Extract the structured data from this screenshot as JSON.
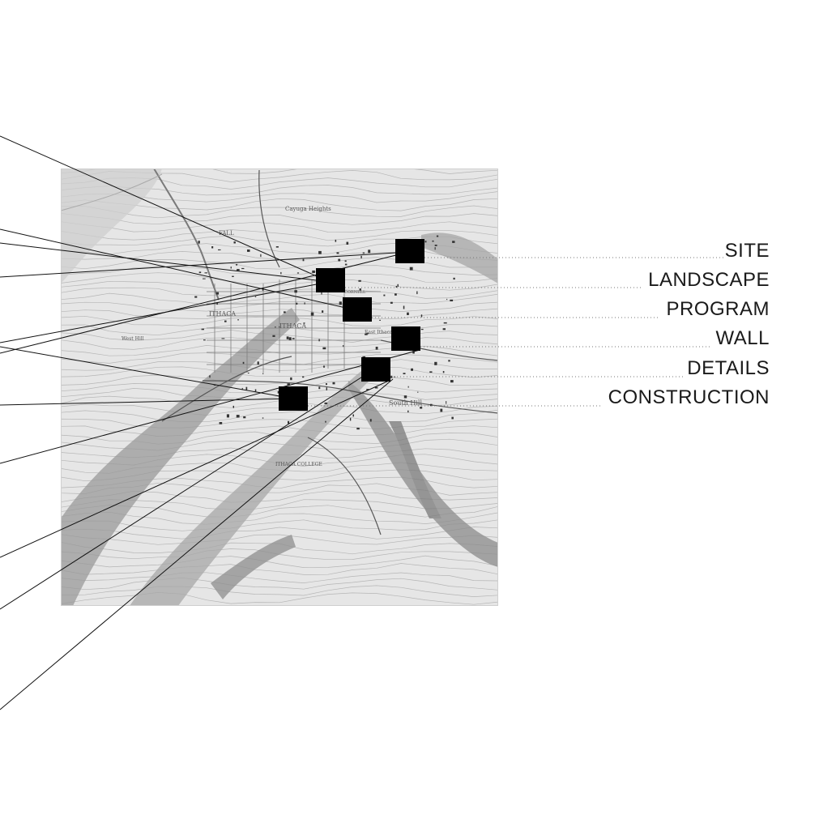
{
  "figure": {
    "map_place_names": [
      "ITHACA",
      "ITHACA",
      "Cayuga Heights",
      "FALL",
      "CORNELL",
      "West Hill",
      "South Hill",
      "ITHACA COLLEGE",
      "East Ithaca"
    ]
  },
  "legend": {
    "items": [
      {
        "label": "SITE"
      },
      {
        "label": "LANDSCAPE"
      },
      {
        "label": "PROGRAM"
      },
      {
        "label": "WALL"
      },
      {
        "label": "DETAILS"
      },
      {
        "label": "CONSTRUCTION"
      }
    ]
  },
  "colors": {
    "marker": "#000000",
    "leader_line": "#111111",
    "dotted_line": "#777777",
    "map_background": "#e4e4e4"
  }
}
